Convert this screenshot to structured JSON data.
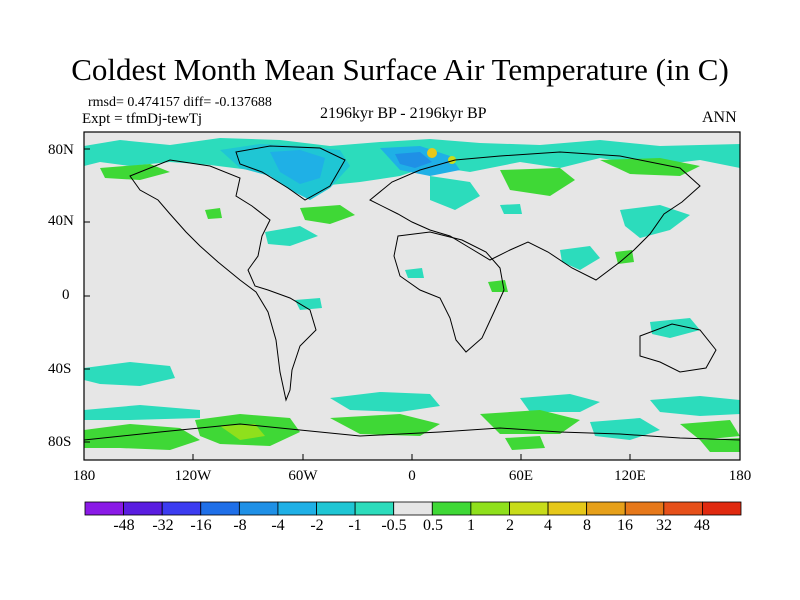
{
  "title": "Coldest Month Mean Surface Air Temperature (in C)",
  "stats_line": "rmsd= 0.474157  diff= -0.137688",
  "experiment_line": "Expt = tfmDj-tewTj",
  "period": "2196kyr BP - 2196kyr BP",
  "season": "ANN",
  "lat_labels": [
    "80N",
    "40N",
    "0",
    "40S",
    "80S"
  ],
  "lon_labels": [
    "180",
    "120W",
    "60W",
    "0",
    "60E",
    "120E",
    "180"
  ],
  "colorbar": {
    "labels": [
      "-48",
      "-32",
      "-16",
      "-8",
      "-4",
      "-2",
      "-1",
      "-0.5",
      "0.5",
      "1",
      "2",
      "4",
      "8",
      "16",
      "32",
      "48"
    ],
    "colors": [
      "#8a1ae6",
      "#5a1de0",
      "#3c3cf0",
      "#1f6fe8",
      "#1f90e6",
      "#1fb0e6",
      "#1fc6d4",
      "#2cdcbc",
      "#e6e6e6",
      "#3fd836",
      "#8fe01c",
      "#c8dc1a",
      "#e6c81a",
      "#e6a01a",
      "#e6781a",
      "#e6501a",
      "#e02a10"
    ]
  },
  "chart_data": {
    "type": "heatmap",
    "title": "Coldest Month Mean Surface Air Temperature (in C)",
    "subtitle": "2196kyr BP - 2196kyr BP",
    "variable": "difference",
    "units": "C",
    "rmsd": 0.474157,
    "diff": -0.137688,
    "x_range": [
      -180,
      180
    ],
    "y_range": [
      -90,
      90
    ],
    "contour_levels": [
      -48,
      -32,
      -16,
      -8,
      -4,
      -2,
      -1,
      -0.5,
      0.5,
      1,
      2,
      4,
      8,
      16,
      32,
      48
    ]
  }
}
